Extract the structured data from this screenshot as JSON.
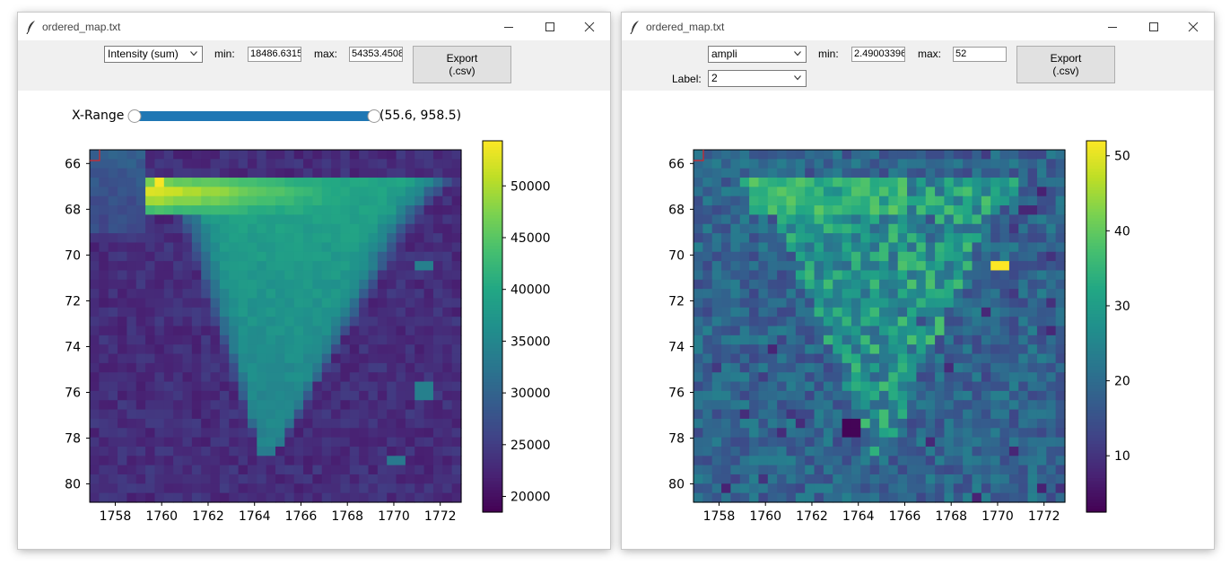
{
  "colors": {
    "slider_track": "#1f77b4",
    "marker": "#d62728",
    "window_bg": "#ffffff",
    "toolbar_bg": "#f0f0f0"
  },
  "windows": [
    {
      "title": "ordered_map.txt",
      "icons": {
        "app": "feather-icon",
        "minimize": "minimize-icon",
        "maximize": "maximize-icon",
        "close": "close-icon"
      },
      "quantity_select": "Intensity (sum)",
      "min_label": "min:",
      "min_value": "18486.6315",
      "max_label": "max:",
      "max_value": "54353.4508",
      "export_label_1": "Export",
      "export_label_2": "(.csv)",
      "slider": {
        "label": "X-Range",
        "value_text": "(55.6, 958.5)",
        "low_fraction": 0.0,
        "high_fraction": 1.0
      }
    },
    {
      "title": "ordered_map.txt",
      "icons": {
        "app": "feather-icon",
        "minimize": "minimize-icon",
        "maximize": "maximize-icon",
        "close": "close-icon"
      },
      "quantity_select": "ampli",
      "min_label": "min:",
      "min_value": "2.49003396",
      "max_label": "max:",
      "max_value": "52",
      "export_label_1": "Export",
      "export_label_2": "(.csv)",
      "label_caption": "Label:",
      "label_select": "2"
    }
  ],
  "chart_data": [
    {
      "type": "heatmap",
      "colormap": "viridis",
      "x_ticks": [
        1758,
        1760,
        1762,
        1764,
        1766,
        1768,
        1770,
        1772
      ],
      "y_ticks": [
        66,
        68,
        70,
        72,
        74,
        76,
        78,
        80
      ],
      "xlim": [
        1756.9,
        1772.9
      ],
      "ylim": [
        80.8,
        65.4
      ],
      "grid_cols": 40,
      "grid_rows": 38,
      "colorbar": {
        "min": 18486.6315,
        "max": 54353.4508,
        "ticks": [
          20000,
          25000,
          30000,
          35000,
          40000,
          45000,
          50000
        ]
      },
      "hot_spots": [
        {
          "x": 1759.9,
          "y": 66.9,
          "value": 54000
        },
        {
          "x": 1771.4,
          "y": 70.5,
          "value": 34000
        },
        {
          "x": 1771.4,
          "y": 76.0,
          "value": 34000
        },
        {
          "x": 1770.2,
          "y": 78.9,
          "value": 33000
        }
      ],
      "grid_on": false,
      "legend": "colorbar-right"
    },
    {
      "type": "heatmap",
      "colormap": "viridis",
      "x_ticks": [
        1758,
        1760,
        1762,
        1764,
        1766,
        1768,
        1770,
        1772
      ],
      "y_ticks": [
        66,
        68,
        70,
        72,
        74,
        76,
        78,
        80
      ],
      "xlim": [
        1756.9,
        1772.9
      ],
      "ylim": [
        80.8,
        65.4
      ],
      "grid_cols": 40,
      "grid_rows": 38,
      "colorbar": {
        "min": 2.49,
        "max": 52,
        "ticks": [
          10,
          20,
          30,
          40,
          50
        ]
      },
      "hot_spots": [
        {
          "x": 1770.2,
          "y": 70.5,
          "value": 52
        },
        {
          "x": 1763.8,
          "y": 77.6,
          "value": 3
        },
        {
          "x": 1771.3,
          "y": 68.0,
          "value": 8
        }
      ],
      "grid_on": false,
      "legend": "colorbar-right"
    }
  ]
}
